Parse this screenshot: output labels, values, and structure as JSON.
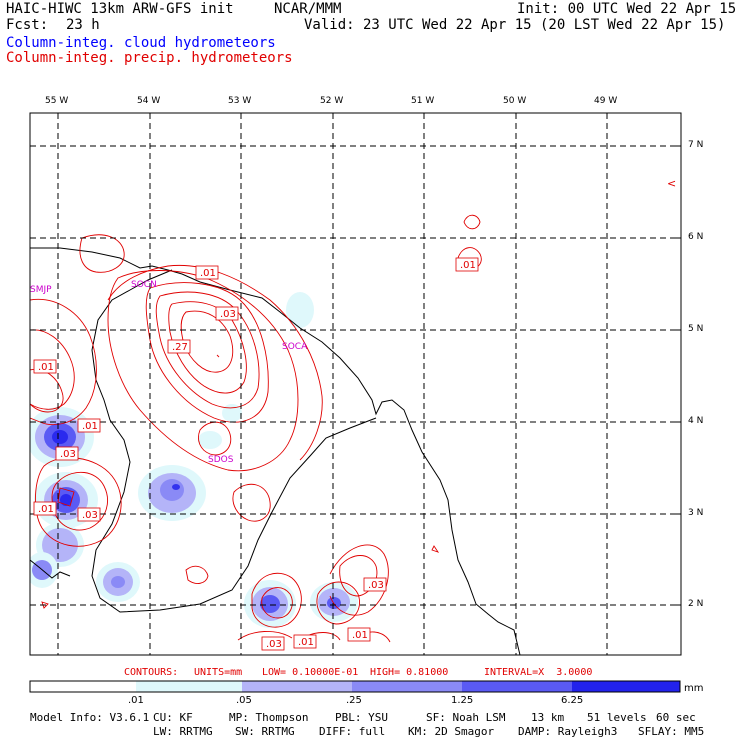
{
  "header": {
    "model_title": "HAIC-HIWC 13km ARW-GFS init",
    "org": "NCAR/MMM",
    "init": "Init: 00 UTC Wed 22 Apr 15",
    "fcst_label": "Fcst:",
    "fcst_value": "23 h",
    "valid": "Valid: 23 UTC Wed 22 Apr 15 (20 LST Wed 22 Apr 15)",
    "field_cloud": "Column-integ. cloud hydrometeors",
    "field_precip": "Column-integ. precip. hydrometeors",
    "cloud_color": "#0000ff",
    "precip_color": "#e00000"
  },
  "map": {
    "lon_labels": [
      "55 W",
      "54 W",
      "53 W",
      "52 W",
      "51 W",
      "50 W",
      "49 W"
    ],
    "lat_labels": [
      "7 N",
      "6 N",
      "5 N",
      "4 N",
      "3 N",
      "2 N"
    ],
    "stations": [
      "SMJP",
      "SOCN",
      "SOCA",
      "SDOS"
    ],
    "contour_labels": [
      ".01",
      ".03",
      ".27",
      ".01",
      ".01",
      ".03",
      ".01",
      ".03",
      ".03",
      ".03",
      ".01",
      ".01"
    ],
    "stray_symbol": "<"
  },
  "contour_info": {
    "contours": "CONTOURS:",
    "units": "UNITS=mm",
    "low": "LOW= 0.10000E-01",
    "high": "HIGH= 0.81000",
    "interval": "INTERVAL=X  3.0000"
  },
  "colorbar": {
    "units": "mm",
    "ticks": [
      ".01",
      ".05",
      ".25",
      "1.25",
      "6.25"
    ],
    "colors": [
      "#ffffff",
      "#dff8fb",
      "#b4b4f8",
      "#8a8af6",
      "#5a5af4",
      "#3333ee",
      "#1010ea"
    ]
  },
  "model_info": {
    "line1": [
      "Model Info: V3.6.1",
      "CU: KF",
      "MP: Thompson",
      "PBL: YSU",
      "SF: Noah LSM",
      "13 km",
      "51 levels",
      "60 sec"
    ],
    "line2": [
      "LW: RRTMG",
      "SW: RRTMG",
      "DIFF: full",
      "KM: 2D Smagor",
      "DAMP: Rayleigh3",
      "SFLAY: MM5"
    ]
  }
}
